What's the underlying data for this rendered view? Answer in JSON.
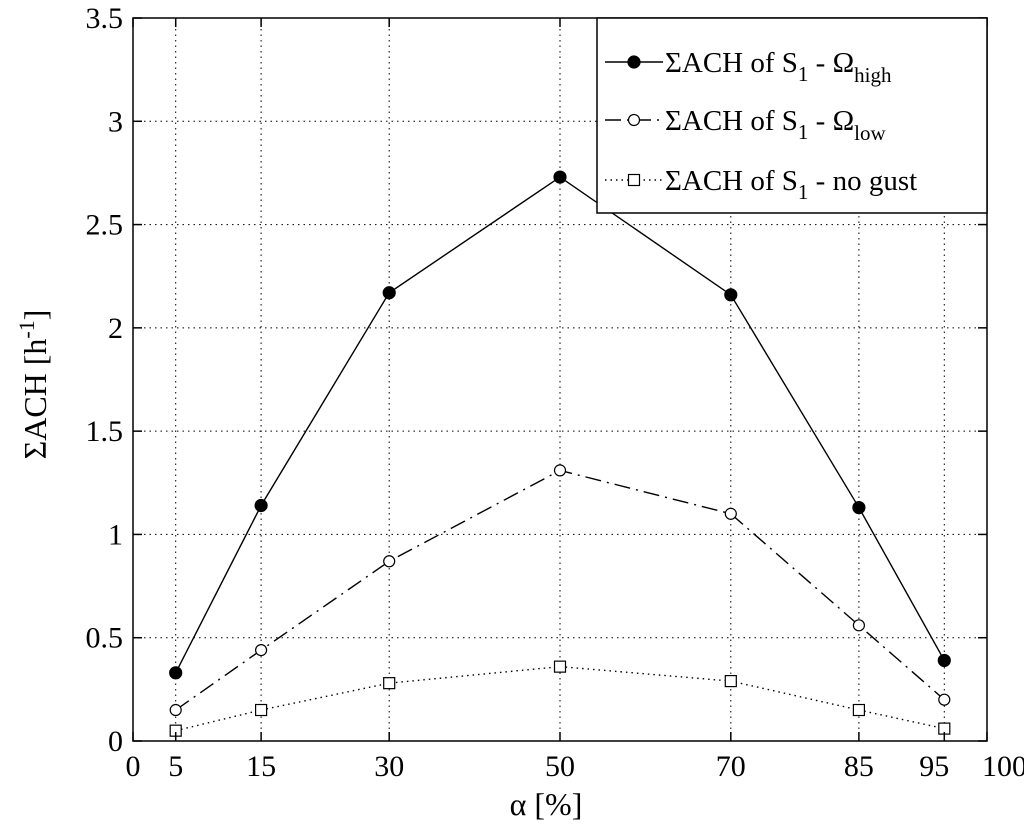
{
  "chart_data": {
    "type": "line",
    "title": "",
    "xlabel": "α [%]",
    "ylabel": "ΣACH [h-1]",
    "ylabel_parts": {
      "base": "ΣACH [h",
      "sup": "-1",
      "end": "]"
    },
    "xlim": [
      0,
      100
    ],
    "ylim": [
      0,
      3.5
    ],
    "x_ticks": [
      0,
      5,
      15,
      30,
      50,
      70,
      85,
      95,
      100
    ],
    "x_tick_labels": [
      "0",
      "5",
      "15",
      "30",
      "50",
      "70",
      "85",
      "95",
      "100"
    ],
    "y_ticks": [
      0,
      0.5,
      1,
      1.5,
      2,
      2.5,
      3,
      3.5
    ],
    "y_tick_labels": [
      "0",
      "0.5",
      "1",
      "1.5",
      "2",
      "2.5",
      "3",
      "3.5"
    ],
    "grid": true,
    "grid_style": "dotted",
    "legend_position": "top-right",
    "x": [
      5,
      15,
      30,
      50,
      70,
      85,
      95
    ],
    "series": [
      {
        "name": "ΣACH of S1 - Ωhigh",
        "label_parts": {
          "base": "ΣACH of S",
          "sub1": "1",
          "mid": " - Ω",
          "sub2": "high"
        },
        "values": [
          0.33,
          1.14,
          2.17,
          2.73,
          2.16,
          1.13,
          0.39
        ],
        "marker": "filled-circle",
        "line_style": "solid",
        "color": "#000000"
      },
      {
        "name": "ΣACH of S1 - Ωlow",
        "label_parts": {
          "base": "ΣACH of S",
          "sub1": "1",
          "mid": " - Ω",
          "sub2": "low"
        },
        "values": [
          0.15,
          0.44,
          0.87,
          1.31,
          1.1,
          0.56,
          0.2
        ],
        "marker": "open-circle",
        "line_style": "dash-dot",
        "color": "#000000"
      },
      {
        "name": "ΣACH of S1 - no gust",
        "label_parts": {
          "base": "ΣACH of S",
          "sub1": "1",
          "mid": " - no gust",
          "sub2": ""
        },
        "values": [
          0.05,
          0.15,
          0.28,
          0.36,
          0.29,
          0.15,
          0.06
        ],
        "marker": "open-square",
        "line_style": "dotted",
        "color": "#000000"
      }
    ]
  }
}
